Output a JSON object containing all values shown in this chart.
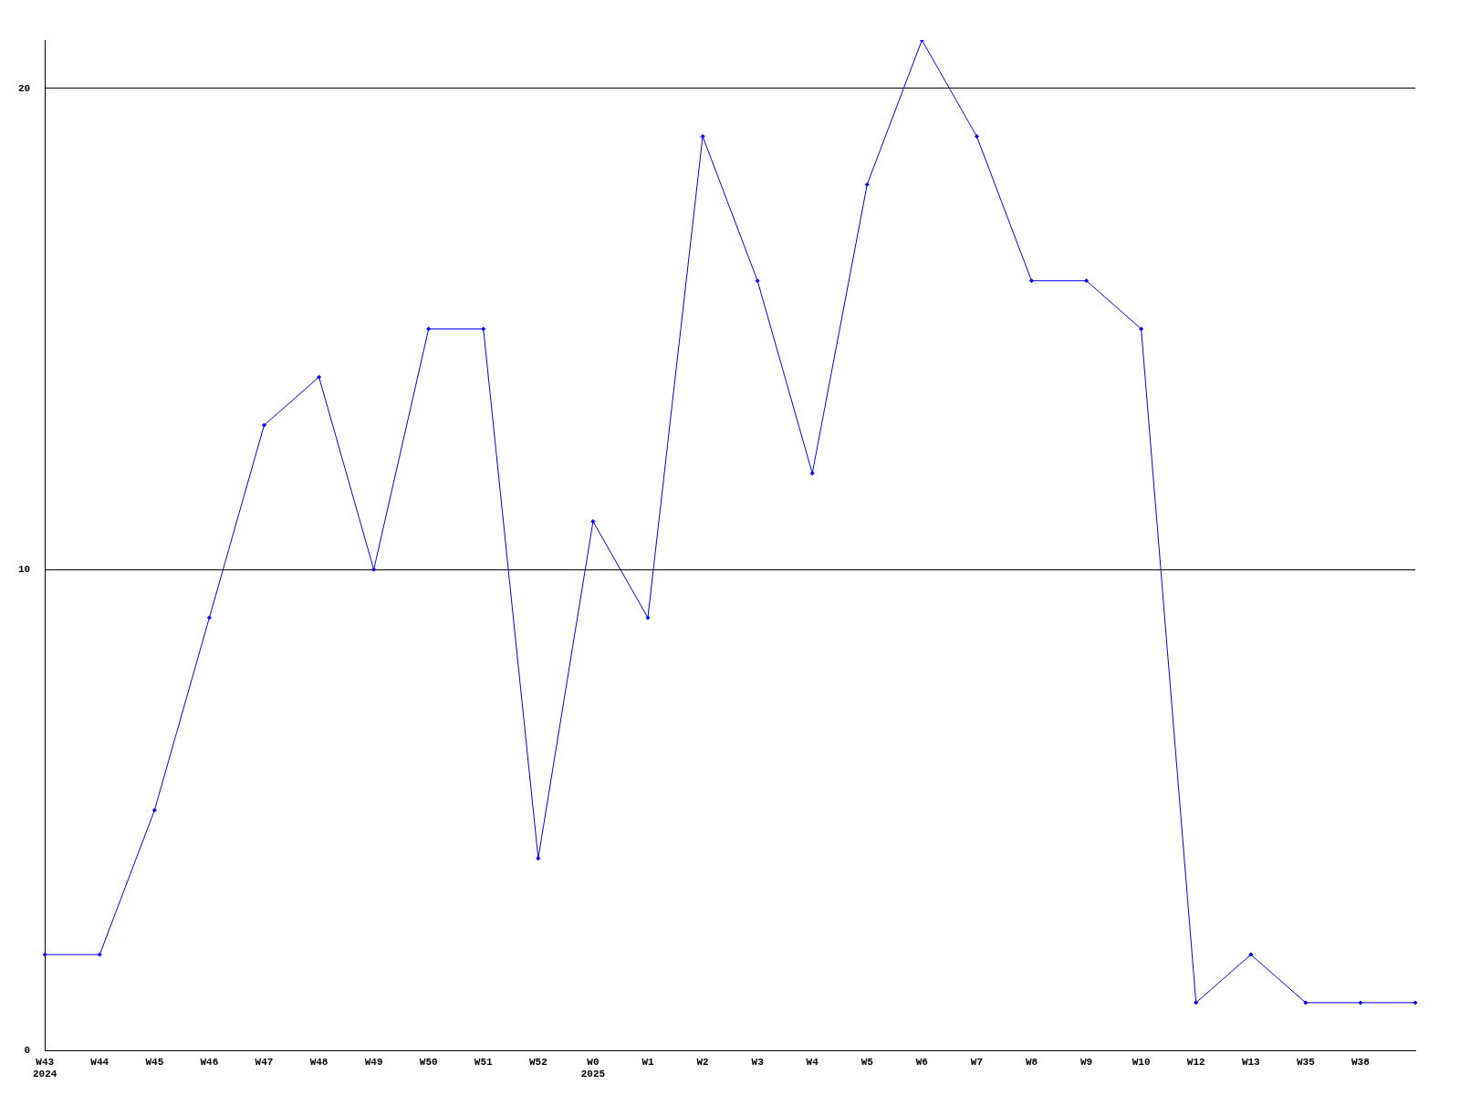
{
  "chart_data": {
    "type": "line",
    "categories": [
      "W43\n2024",
      "W44",
      "W45",
      "W46",
      "W47",
      "W48",
      "W49",
      "W50",
      "W51",
      "W52",
      "W0\n2025",
      "W1",
      "W2",
      "W3",
      "W4",
      "W5",
      "W6",
      "W7",
      "W8",
      "W9",
      "W10",
      "W12",
      "W13",
      "W35",
      "W38",
      null
    ],
    "series": [
      {
        "color": "#0000ff",
        "values": [
          2,
          2,
          5,
          9,
          13,
          14,
          10,
          15,
          15,
          4,
          11,
          9,
          19,
          16,
          12,
          18,
          21,
          19,
          16,
          16,
          15,
          1,
          2,
          1,
          1,
          1
        ]
      }
    ],
    "ylim": [
      0,
      21
    ],
    "yticks": [
      0,
      10,
      20
    ],
    "grid": "y",
    "legend": false,
    "marker": "diamond",
    "line_style": "solid"
  }
}
